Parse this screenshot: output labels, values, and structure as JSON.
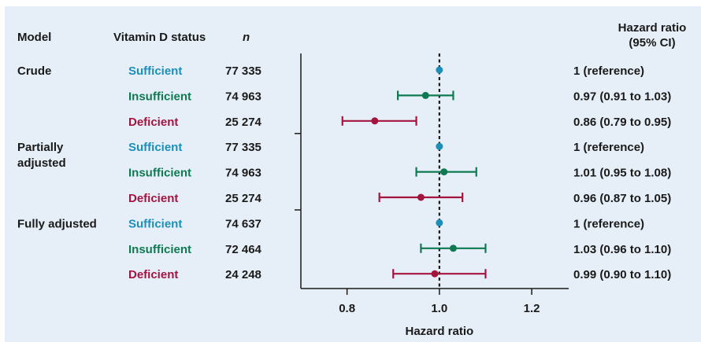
{
  "headers": {
    "model": "Model",
    "status": "Vitamin D status",
    "n": "n",
    "hr_line1": "Hazard ratio",
    "hr_line2": "(95% CI)"
  },
  "colors": {
    "Sufficient": "#1b8fb8",
    "Insufficient": "#0f7a52",
    "Deficient": "#a3153f"
  },
  "chart_data": {
    "type": "forest",
    "xlabel": "Hazard ratio",
    "xlim": [
      0.7,
      1.28
    ],
    "xticks": [
      0.8,
      1.0,
      1.2
    ],
    "xtick_labels": [
      "0.8",
      "1.0",
      "1.2"
    ],
    "reference_line": 1.0,
    "groups": [
      {
        "model": [
          "Crude"
        ],
        "rows": [
          {
            "status": "Sufficient",
            "n": "77 335",
            "hr": 1.0,
            "lo": 1.0,
            "hi": 1.0,
            "label": "1 (reference)"
          },
          {
            "status": "Insufficient",
            "n": "74 963",
            "hr": 0.97,
            "lo": 0.91,
            "hi": 1.03,
            "label": "0.97 (0.91 to 1.03)"
          },
          {
            "status": "Deficient",
            "n": "25 274",
            "hr": 0.86,
            "lo": 0.79,
            "hi": 0.95,
            "label": "0.86 (0.79 to 0.95)"
          }
        ]
      },
      {
        "model": [
          "Partially",
          "adjusted"
        ],
        "rows": [
          {
            "status": "Sufficient",
            "n": "77 335",
            "hr": 1.0,
            "lo": 1.0,
            "hi": 1.0,
            "label": "1 (reference)"
          },
          {
            "status": "Insufficient",
            "n": "74 963",
            "hr": 1.01,
            "lo": 0.95,
            "hi": 1.08,
            "label": "1.01 (0.95 to 1.08)"
          },
          {
            "status": "Deficient",
            "n": "25 274",
            "hr": 0.96,
            "lo": 0.87,
            "hi": 1.05,
            "label": "0.96 (0.87 to 1.05)"
          }
        ]
      },
      {
        "model": [
          "Fully adjusted"
        ],
        "rows": [
          {
            "status": "Sufficient",
            "n": "74 637",
            "hr": 1.0,
            "lo": 1.0,
            "hi": 1.0,
            "label": "1 (reference)"
          },
          {
            "status": "Insufficient",
            "n": "72 464",
            "hr": 1.03,
            "lo": 0.96,
            "hi": 1.1,
            "label": "1.03 (0.96 to 1.10)"
          },
          {
            "status": "Deficient",
            "n": "24 248",
            "hr": 0.99,
            "lo": 0.9,
            "hi": 1.1,
            "label": "0.99 (0.90 to 1.10)"
          }
        ]
      }
    ]
  }
}
